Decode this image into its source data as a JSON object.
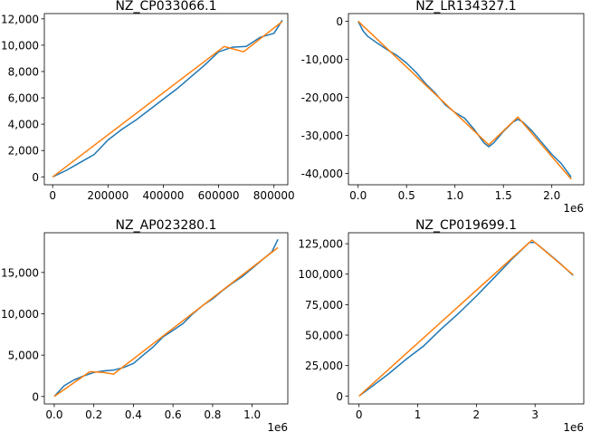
{
  "figure": {
    "background": "#ffffff",
    "series_colors": [
      "#1f77b4",
      "#ff7f0e"
    ]
  },
  "chart_data": [
    {
      "type": "line",
      "title": "NZ_CP033066.1",
      "xlim": [
        -30000,
        850000
      ],
      "ylim": [
        -600,
        12400
      ],
      "xticks": [
        0,
        200000,
        400000,
        600000,
        800000
      ],
      "xtick_labels": [
        "0",
        "200000",
        "400000",
        "600000",
        "800000"
      ],
      "yticks": [
        0,
        2000,
        4000,
        6000,
        8000,
        10000,
        12000
      ],
      "ytick_labels": [
        "0",
        "2,000",
        "4,000",
        "6,000",
        "8,000",
        "10,000",
        "12,000"
      ],
      "offset_text": "",
      "series": [
        {
          "color": "#1f77b4",
          "x": [
            0,
            50000,
            100000,
            150000,
            200000,
            250000,
            300000,
            350000,
            400000,
            450000,
            500000,
            550000,
            600000,
            650000,
            700000,
            750000,
            800000,
            830000
          ],
          "y": [
            0,
            500,
            1100,
            1700,
            2800,
            3600,
            4300,
            5100,
            5900,
            6700,
            7600,
            8500,
            9500,
            9850,
            9900,
            10600,
            10900,
            11900
          ]
        },
        {
          "color": "#ff7f0e",
          "x": [
            0,
            620000,
            690000,
            830000
          ],
          "y": [
            0,
            9900,
            9500,
            11800
          ]
        }
      ]
    },
    {
      "type": "line",
      "title": "NZ_LR134327.1",
      "xlim": [
        -100000,
        2330000
      ],
      "ylim": [
        -43000,
        2000
      ],
      "xticks": [
        0,
        500000,
        1000000,
        1500000,
        2000000
      ],
      "xtick_labels": [
        "0.0",
        "0.5",
        "1.0",
        "1.5",
        "2.0"
      ],
      "yticks": [
        0,
        -10000,
        -20000,
        -30000,
        -40000
      ],
      "ytick_labels": [
        "0",
        "-10,000",
        "-20,000",
        "-30,000",
        "-40,000"
      ],
      "offset_text": "1e6",
      "series": [
        {
          "color": "#1f77b4",
          "x": [
            0,
            50000,
            100000,
            200000,
            300000,
            400000,
            500000,
            600000,
            700000,
            800000,
            900000,
            1000000,
            1100000,
            1200000,
            1300000,
            1350000,
            1400000,
            1500000,
            1600000,
            1650000,
            1700000,
            1800000,
            1900000,
            2000000,
            2100000,
            2200000
          ],
          "y": [
            0,
            -2500,
            -4000,
            -5800,
            -7500,
            -9000,
            -11000,
            -13500,
            -16500,
            -19000,
            -22000,
            -24000,
            -25500,
            -28500,
            -32000,
            -33000,
            -32000,
            -29000,
            -26500,
            -25800,
            -26500,
            -29000,
            -32000,
            -35000,
            -37500,
            -41000
          ]
        },
        {
          "color": "#ff7f0e",
          "x": [
            0,
            1350000,
            1650000,
            2200000
          ],
          "y": [
            0,
            -32500,
            -25200,
            -41500
          ]
        }
      ]
    },
    {
      "type": "line",
      "title": "NZ_AP023280.1",
      "xlim": [
        -50000,
        1180000
      ],
      "ylim": [
        -900,
        19800
      ],
      "xticks": [
        0,
        200000,
        400000,
        600000,
        800000,
        1000000
      ],
      "xtick_labels": [
        "0.0",
        "0.2",
        "0.4",
        "0.6",
        "0.8",
        "1.0"
      ],
      "yticks": [
        0,
        5000,
        10000,
        15000
      ],
      "ytick_labels": [
        "0",
        "5,000",
        "10,000",
        "15,000"
      ],
      "offset_text": "1e6",
      "series": [
        {
          "color": "#1f77b4",
          "x": [
            0,
            50000,
            100000,
            150000,
            200000,
            250000,
            300000,
            350000,
            400000,
            450000,
            500000,
            550000,
            600000,
            650000,
            700000,
            750000,
            800000,
            850000,
            900000,
            950000,
            1000000,
            1050000,
            1100000,
            1130000
          ],
          "y": [
            0,
            1300,
            2000,
            2500,
            2900,
            3100,
            3200,
            3500,
            4000,
            5000,
            6000,
            7200,
            8000,
            8800,
            10000,
            11000,
            11800,
            12800,
            13700,
            14500,
            15500,
            16500,
            17500,
            19000
          ]
        },
        {
          "color": "#ff7f0e",
          "x": [
            0,
            180000,
            250000,
            300000,
            1130000
          ],
          "y": [
            0,
            3000,
            2900,
            2700,
            18000
          ]
        }
      ]
    },
    {
      "type": "line",
      "title": "NZ_CP019699.1",
      "xlim": [
        -180000,
        3830000
      ],
      "ylim": [
        -6500,
        134000
      ],
      "xticks": [
        0,
        1000000,
        2000000,
        3000000
      ],
      "xtick_labels": [
        "0",
        "1",
        "2",
        "3"
      ],
      "yticks": [
        0,
        25000,
        50000,
        75000,
        100000,
        125000
      ],
      "ytick_labels": [
        "0",
        "25,000",
        "50,000",
        "75,000",
        "100,000",
        "125,000"
      ],
      "offset_text": "1e6",
      "series": [
        {
          "color": "#1f77b4",
          "x": [
            0,
            200000,
            500000,
            800000,
            1100000,
            1400000,
            1700000,
            2000000,
            2300000,
            2600000,
            2900000,
            3000000,
            3200000,
            3400000,
            3650000
          ],
          "y": [
            0,
            7000,
            18000,
            30000,
            41000,
            55000,
            68000,
            82000,
            97000,
            112000,
            126000,
            126000,
            118000,
            110000,
            99000
          ]
        },
        {
          "color": "#ff7f0e",
          "x": [
            0,
            2950000,
            3650000
          ],
          "y": [
            0,
            128000,
            99500
          ]
        }
      ]
    }
  ]
}
